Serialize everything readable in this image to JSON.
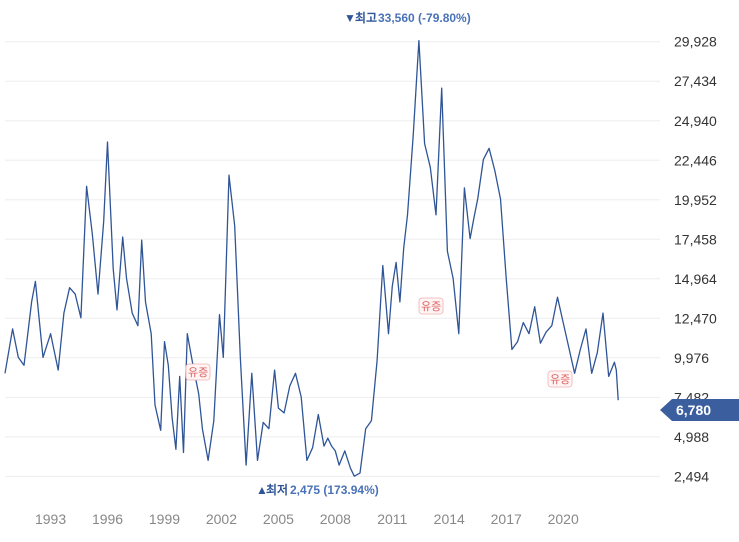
{
  "chart_data": {
    "type": "line",
    "y_ticks": [
      "29,928",
      "27,434",
      "24,940",
      "22,446",
      "19,952",
      "17,458",
      "14,964",
      "12,470",
      "9,976",
      "7,482",
      "4,988",
      "2,494"
    ],
    "y_tick_values": [
      29928,
      27434,
      24940,
      22446,
      19952,
      17458,
      14964,
      12470,
      9976,
      7482,
      4988,
      2494
    ],
    "x_ticks": [
      "1993",
      "1996",
      "1999",
      "2002",
      "2005",
      "2008",
      "2011",
      "2014",
      "2017",
      "2020"
    ],
    "x_tick_values": [
      1993,
      1996,
      1999,
      2002,
      2005,
      2008,
      2011,
      2014,
      2017,
      2020
    ],
    "ylim": [
      1000,
      31300
    ],
    "xlim": [
      1990.6,
      2025.1
    ],
    "series": [
      {
        "color": "#2f5597",
        "x": [
          1990.6,
          1991.0,
          1991.3,
          1991.6,
          1992.0,
          1992.2,
          1992.6,
          1993.0,
          1993.4,
          1993.7,
          1994.0,
          1994.3,
          1994.6,
          1994.9,
          1995.2,
          1995.5,
          1995.8,
          1996.0,
          1996.3,
          1996.5,
          1996.8,
          1997.0,
          1997.3,
          1997.6,
          1997.8,
          1998.0,
          1998.3,
          1998.5,
          1998.8,
          1999.0,
          1999.2,
          1999.4,
          1999.6,
          1999.8,
          2000.0,
          2000.2,
          2000.5,
          2000.8,
          2001.0,
          2001.3,
          2001.6,
          2001.9,
          2002.1,
          2002.4,
          2002.7,
          2003.0,
          2003.3,
          2003.6,
          2003.9,
          2004.2,
          2004.5,
          2004.8,
          2005.0,
          2005.3,
          2005.6,
          2005.9,
          2006.2,
          2006.5,
          2006.8,
          2007.1,
          2007.4,
          2007.6,
          2007.8,
          2008.0,
          2008.2,
          2008.5,
          2008.8,
          2009.0,
          2009.3,
          2009.6,
          2009.9,
          2010.2,
          2010.5,
          2010.8,
          2011.0,
          2011.2,
          2011.4,
          2011.6,
          2011.8,
          2012.1,
          2012.4,
          2012.7,
          2013.0,
          2013.3,
          2013.6,
          2013.9,
          2014.2,
          2014.5,
          2014.8,
          2015.1,
          2015.3,
          2015.5,
          2015.8,
          2016.1,
          2016.4,
          2016.7,
          2017.0,
          2017.3,
          2017.6,
          2017.9,
          2018.2,
          2018.5,
          2018.8,
          2019.1,
          2019.4,
          2019.7,
          2020.0,
          2020.3,
          2020.6,
          2020.9,
          2021.2,
          2021.5,
          2021.8,
          2022.1,
          2022.4,
          2022.7,
          2022.8,
          2022.9
        ],
        "values": [
          9000,
          11800,
          10000,
          9500,
          13500,
          14800,
          10000,
          11500,
          9200,
          12800,
          14400,
          14000,
          12500,
          20800,
          17800,
          14000,
          18600,
          23600,
          15600,
          13000,
          17600,
          15000,
          12800,
          12000,
          17400,
          13500,
          11500,
          7000,
          5400,
          11000,
          9500,
          6200,
          4200,
          8800,
          4000,
          11500,
          9500,
          7700,
          5500,
          3500,
          6000,
          12700,
          10000,
          21500,
          18300,
          9900,
          3200,
          9000,
          3500,
          5900,
          5500,
          9200,
          6800,
          6500,
          8200,
          9000,
          7500,
          3500,
          4300,
          6400,
          4400,
          4900,
          4400,
          4100,
          3200,
          4100,
          3000,
          2500,
          2700,
          5500,
          6000,
          9800,
          15800,
          11500,
          14500,
          16000,
          13500,
          16900,
          19000,
          24000,
          30000,
          23500,
          22000,
          19000,
          27000,
          16700,
          15000,
          11500,
          20700,
          17500,
          18800,
          20000,
          22500,
          23200,
          21800,
          20000,
          15000,
          10500,
          11000,
          12200,
          11500,
          13200,
          10900,
          11600,
          12000,
          13800,
          12200,
          10600,
          9000,
          10500,
          11800,
          9000,
          10300,
          12800,
          8800,
          9700,
          9200,
          7300
        ],
        "note": "approximate monthly-resolution trace read from chart"
      }
    ],
    "high": {
      "label": "최고",
      "value": "33,560 (-79.80%)"
    },
    "low": {
      "label": "최저",
      "value": "2,475 (173.94%)"
    },
    "current": "6,780",
    "badges": [
      "유증",
      "유증",
      "유증"
    ]
  }
}
